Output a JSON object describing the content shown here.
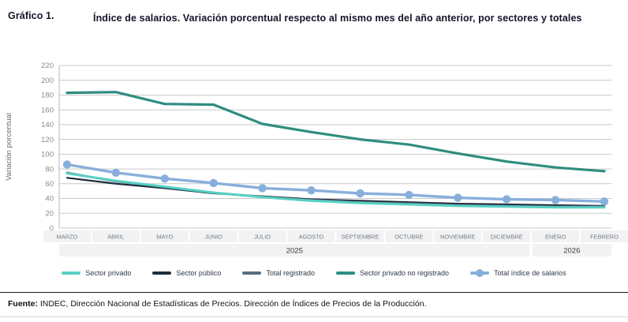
{
  "header": {
    "label": "Gráfico 1.",
    "title": "Índice de salarios. Variación porcentual respecto al mismo mes del año anterior, por sectores y totales"
  },
  "chart_data": {
    "type": "line",
    "title": "Índice de salarios. Variación porcentual respecto al mismo mes del año anterior, por sectores y totales",
    "xlabel": "",
    "ylabel": "Variación porcentual",
    "ylim": [
      0,
      220
    ],
    "ytick_step": 20,
    "grid": true,
    "legend_position": "bottom",
    "categories": [
      "MARZO",
      "ABRIL",
      "MAYO",
      "JUNIO",
      "JULIO",
      "AGOSTO",
      "SEPTIEMBRE",
      "OCTUBRE",
      "NOVIEMBRE",
      "DICIEMBRE",
      "ENERO",
      "FEBRERO"
    ],
    "year_groups": [
      {
        "label": "2025",
        "start": 0,
        "end": 9
      },
      {
        "label": "2026",
        "start": 10,
        "end": 11
      }
    ],
    "series": [
      {
        "name": "Sector público",
        "color": "#1e2c3a",
        "width": 2.2,
        "marker": false,
        "values": [
          68,
          60,
          54,
          47,
          43,
          39,
          37,
          35,
          33,
          32,
          31,
          30
        ]
      },
      {
        "name": "Total registrado",
        "color": "#5a6d80",
        "width": 2.6,
        "marker": false,
        "values": [
          75,
          63,
          56,
          48,
          42,
          38,
          35,
          33,
          31,
          30,
          29,
          29
        ]
      },
      {
        "name": "Sector privado",
        "color": "#56d1c3",
        "width": 3.0,
        "marker": false,
        "values": [
          74,
          64,
          56,
          48,
          42,
          37,
          34,
          32,
          30,
          29,
          28,
          28
        ]
      },
      {
        "name": "Sector privado no registrado",
        "color": "#2f8d80",
        "width": 3.2,
        "marker": false,
        "values": [
          183,
          184,
          168,
          167,
          141,
          130,
          120,
          113,
          101,
          90,
          82,
          77
        ]
      },
      {
        "name": "Total índice de salarios",
        "color": "#88afdc",
        "width": 3.4,
        "marker": true,
        "values": [
          86,
          75,
          67,
          61,
          54,
          51,
          47,
          45,
          41,
          39,
          38,
          36
        ]
      }
    ],
    "legend_order": [
      "Sector privado",
      "Sector público",
      "Total registrado",
      "Sector privado no registrado",
      "Total índice de salarios"
    ]
  },
  "footer": {
    "source_label": "Fuente:",
    "source_text": " INDEC, Dirección Nacional de Estadísticas de Precios. Dirección de Índices de Precios de la Producción."
  }
}
